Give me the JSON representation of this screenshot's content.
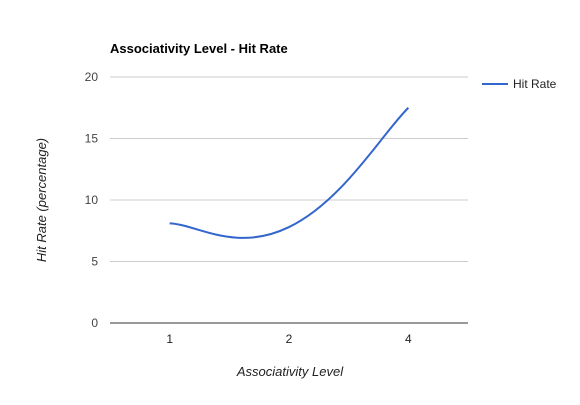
{
  "chart_data": {
    "type": "line",
    "title": "Associativity Level - Hit Rate",
    "xlabel": "Associativity Level",
    "ylabel": "Hit Rate (percentage)",
    "categories": [
      "1",
      "2",
      "4"
    ],
    "yticks": [
      "0",
      "5",
      "10",
      "15",
      "20"
    ],
    "ylim": [
      0,
      20
    ],
    "grid": true,
    "legend_position": "right",
    "series": [
      {
        "name": "Hit Rate",
        "values": [
          8.1,
          7.8,
          17.5
        ],
        "color": "#3366cc"
      }
    ]
  }
}
